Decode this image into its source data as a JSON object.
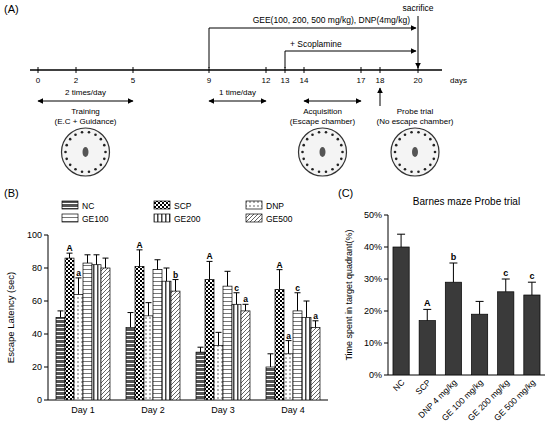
{
  "diagram": {
    "panel_label": "(A)",
    "days": [
      0,
      2,
      5,
      9,
      12,
      13,
      14,
      17,
      18,
      20
    ],
    "unit": "days",
    "treatment": {
      "label": "GEE(100, 200, 500 mg/kg), DNP(4mg/kg)",
      "start": 9,
      "end": 20
    },
    "scopolamine": {
      "label": "+ Scoplamine",
      "start": 13,
      "end": 20
    },
    "sacrifice": {
      "label": "sacrifice",
      "day": 20
    },
    "stages": [
      {
        "label": "2 times/day",
        "start": 0,
        "end": 5,
        "title": "Training",
        "subtitle": "(E.C + Guidance)"
      },
      {
        "label": "1 time/day",
        "start": 9,
        "end": 12
      },
      {
        "start": 14,
        "end": 17,
        "title": "Acquisition",
        "subtitle": "(Escape chamber)"
      }
    ],
    "probe": {
      "day": 18,
      "title": "Probe trial",
      "subtitle": "(No escape chamber)"
    }
  },
  "chart_data": [
    {
      "type": "bar",
      "panel_label": "(B)",
      "ylabel": "Escape Latency (sec)",
      "categories": [
        "Day 1",
        "Day 2",
        "Day 3",
        "Day 4"
      ],
      "ylim": [
        0,
        100
      ],
      "yticks": [
        0,
        20,
        40,
        60,
        80,
        100
      ],
      "legend": "top",
      "series": [
        {
          "name": "NC",
          "color": "#555555",
          "values": [
            50,
            44,
            29,
            20
          ],
          "errors": [
            4,
            9,
            3,
            8
          ],
          "annotations": [
            null,
            null,
            null,
            null
          ]
        },
        {
          "name": "SCP",
          "color": "#000000",
          "values": [
            86,
            81,
            73,
            67
          ],
          "errors": [
            3,
            10,
            11,
            12
          ],
          "annotations": [
            "A",
            "A",
            "A",
            "A"
          ]
        },
        {
          "name": "DNP",
          "color": "#999999",
          "values": [
            64,
            51,
            33,
            28
          ],
          "errors": [
            10,
            8,
            8,
            8
          ],
          "annotations": [
            "a",
            null,
            null,
            "a"
          ]
        },
        {
          "name": "GE100",
          "color": "#777777",
          "values": [
            83,
            79,
            69,
            54
          ],
          "errors": [
            5,
            6,
            9,
            11
          ],
          "annotations": [
            null,
            null,
            null,
            "c"
          ]
        },
        {
          "name": "GE200",
          "color": "#444444",
          "values": [
            82,
            72,
            58,
            50
          ],
          "errors": [
            6,
            8,
            7,
            10
          ],
          "annotations": [
            null,
            null,
            "c",
            null
          ]
        },
        {
          "name": "GE500",
          "color": "#666666",
          "values": [
            80,
            66,
            54,
            44
          ],
          "errors": [
            6,
            7,
            4,
            4
          ],
          "annotations": [
            null,
            "b",
            "a",
            "a"
          ]
        }
      ]
    },
    {
      "type": "bar",
      "panel_label": "(C)",
      "title": "Barnes maze Probe trial",
      "ylabel": "Time spent in target quadrant(%)",
      "categories": [
        "NC",
        "SCP",
        "DNP 4 mg/kg",
        "GE 100 mg/kg",
        "GE 200 mg/kg",
        "GE 500 mg/kg"
      ],
      "ylim": [
        0,
        50
      ],
      "yticks": [
        {
          "value": 0,
          "label": "0%"
        },
        {
          "value": 10,
          "label": "10%"
        },
        {
          "value": 20,
          "label": "20%"
        },
        {
          "value": 30,
          "label": "30%"
        },
        {
          "value": 40,
          "label": "40%"
        },
        {
          "value": 50,
          "label": "50%"
        }
      ],
      "color": "#3a3a3a",
      "values": [
        40,
        17,
        29,
        19,
        26,
        25
      ],
      "errors": [
        4,
        3.5,
        6,
        4,
        4,
        4
      ],
      "annotations": [
        null,
        "A",
        "b",
        null,
        "c",
        "c"
      ]
    }
  ]
}
